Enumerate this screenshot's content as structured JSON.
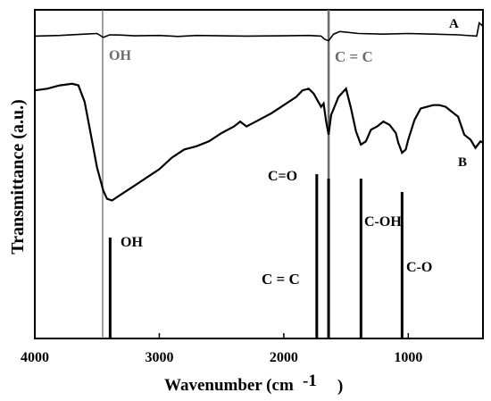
{
  "chart_data": {
    "type": "line",
    "xlabel": "Wavenumber (cm",
    "xlabel_sup": "-1",
    "xlabel_close": ")",
    "ylabel": "Transmittance (a.u.)",
    "xlim": [
      4000,
      400
    ],
    "x_reversed": true,
    "x_ticks": [
      4000,
      3000,
      2000,
      1000
    ],
    "x_tick_labels": [
      "4000",
      "3000",
      "2000",
      "1000"
    ],
    "y_ticks_shown": false,
    "grid": false,
    "y_units": "arbitrary transmittance offset",
    "series": [
      {
        "name": "A",
        "x": [
          4000,
          3800,
          3600,
          3500,
          3450,
          3400,
          3300,
          3200,
          3000,
          2850,
          2700,
          2500,
          2300,
          2000,
          1800,
          1700,
          1670,
          1640,
          1600,
          1550,
          1400,
          1200,
          1000,
          800,
          600,
          450,
          430,
          400
        ],
        "y": [
          92.0,
          92.2,
          92.6,
          92.8,
          91.6,
          92.4,
          92.3,
          92.1,
          92.2,
          91.9,
          92.2,
          92.1,
          92.0,
          92.1,
          92.2,
          92.0,
          91.0,
          90.6,
          92.6,
          93.4,
          92.8,
          92.6,
          92.8,
          92.6,
          92.4,
          92.0,
          96.0,
          95.0
        ]
      },
      {
        "name": "B",
        "x": [
          4000,
          3900,
          3800,
          3700,
          3650,
          3600,
          3550,
          3500,
          3450,
          3420,
          3380,
          3300,
          3200,
          3100,
          3000,
          2900,
          2800,
          2700,
          2600,
          2500,
          2400,
          2350,
          2300,
          2200,
          2100,
          2000,
          1900,
          1850,
          1800,
          1760,
          1730,
          1700,
          1680,
          1660,
          1640,
          1620,
          1560,
          1500,
          1460,
          1420,
          1380,
          1340,
          1300,
          1250,
          1200,
          1150,
          1100,
          1080,
          1050,
          1020,
          1000,
          950,
          900,
          850,
          800,
          750,
          700,
          650,
          600,
          550,
          500,
          460,
          420,
          400
        ],
        "y": [
          75.5,
          76.0,
          77.0,
          77.5,
          77.0,
          72.0,
          62.0,
          52.0,
          45.0,
          42.5,
          42.0,
          44.0,
          46.5,
          49.0,
          51.5,
          55.0,
          57.5,
          58.5,
          60.0,
          62.5,
          64.5,
          66.0,
          64.5,
          66.5,
          68.5,
          71.0,
          73.5,
          75.5,
          76.0,
          74.5,
          72.5,
          70.5,
          71.5,
          66.0,
          62.0,
          68.0,
          73.5,
          76.0,
          70.0,
          63.0,
          59.0,
          60.0,
          63.5,
          64.5,
          66.0,
          65.0,
          62.5,
          59.5,
          56.5,
          57.5,
          60.5,
          66.5,
          70.0,
          70.5,
          71.0,
          71.0,
          70.5,
          69.0,
          67.5,
          62.0,
          60.5,
          58.0,
          60.0,
          59.5
        ]
      }
    ],
    "series_labels": [
      "A",
      "B"
    ],
    "annotations_top": [
      {
        "text": "OH",
        "x": 3455
      },
      {
        "text": "C = C",
        "x": 1640
      }
    ],
    "annotations_bottom": [
      {
        "text": "OH",
        "x": 3395
      },
      {
        "text": "C=O",
        "x": 1735
      },
      {
        "text": "C = C",
        "x": 1640
      },
      {
        "text": "C-OH",
        "x": 1380
      },
      {
        "text": "C-O",
        "x": 1050
      }
    ],
    "colors": {
      "curve": "#000000",
      "top_label": "#6b6b6b",
      "top_line": "#6e6e6e",
      "bottom_line": "#000000"
    }
  }
}
